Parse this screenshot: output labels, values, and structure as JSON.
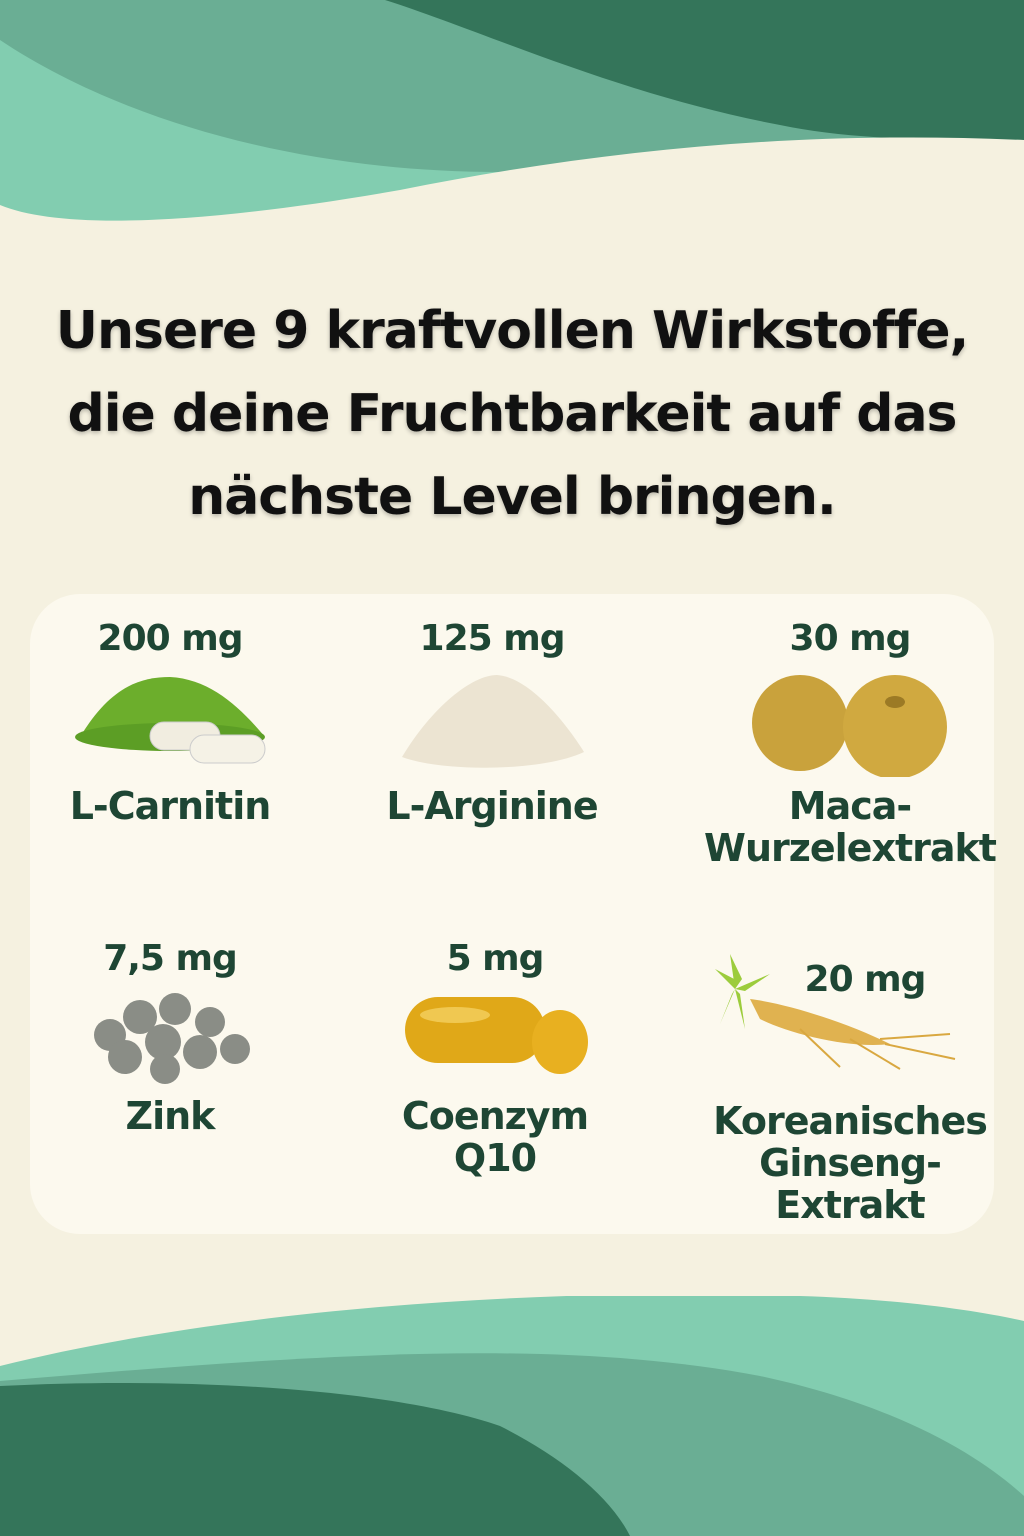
{
  "headline": {
    "line1": "Unsere 9 kraftvollen Wirkstoffe,",
    "line2": "die deine Fruchtbarkeit auf das",
    "line3": "nächste Level bringen."
  },
  "colors": {
    "dark_green": "#34755a",
    "mid_green": "#6aae94",
    "light_green": "#82cdb0",
    "background": "#f5f1e0",
    "card": "#fcf9ee",
    "text": "#1e4634"
  },
  "ingredients": [
    {
      "dose": "200 mg",
      "name_lines": [
        "L-Carnitin"
      ],
      "icon": "green-powder-capsules-icon"
    },
    {
      "dose": "125 mg",
      "name_lines": [
        "L-Arginine"
      ],
      "icon": "white-powder-icon"
    },
    {
      "dose": "30 mg",
      "name_lines": [
        "Maca-",
        "Wurzelextrakt"
      ],
      "icon": "maca-root-icon"
    },
    {
      "dose": "7,5 mg",
      "name_lines": [
        "Zink"
      ],
      "icon": "zinc-pellets-icon"
    },
    {
      "dose": "5 mg",
      "name_lines": [
        "Coenzym",
        "Q10"
      ],
      "icon": "softgel-capsules-icon"
    },
    {
      "dose": "20 mg",
      "name_lines": [
        "Koreanisches",
        "Ginseng-",
        "Extrakt"
      ],
      "icon": "ginseng-root-icon"
    }
  ]
}
